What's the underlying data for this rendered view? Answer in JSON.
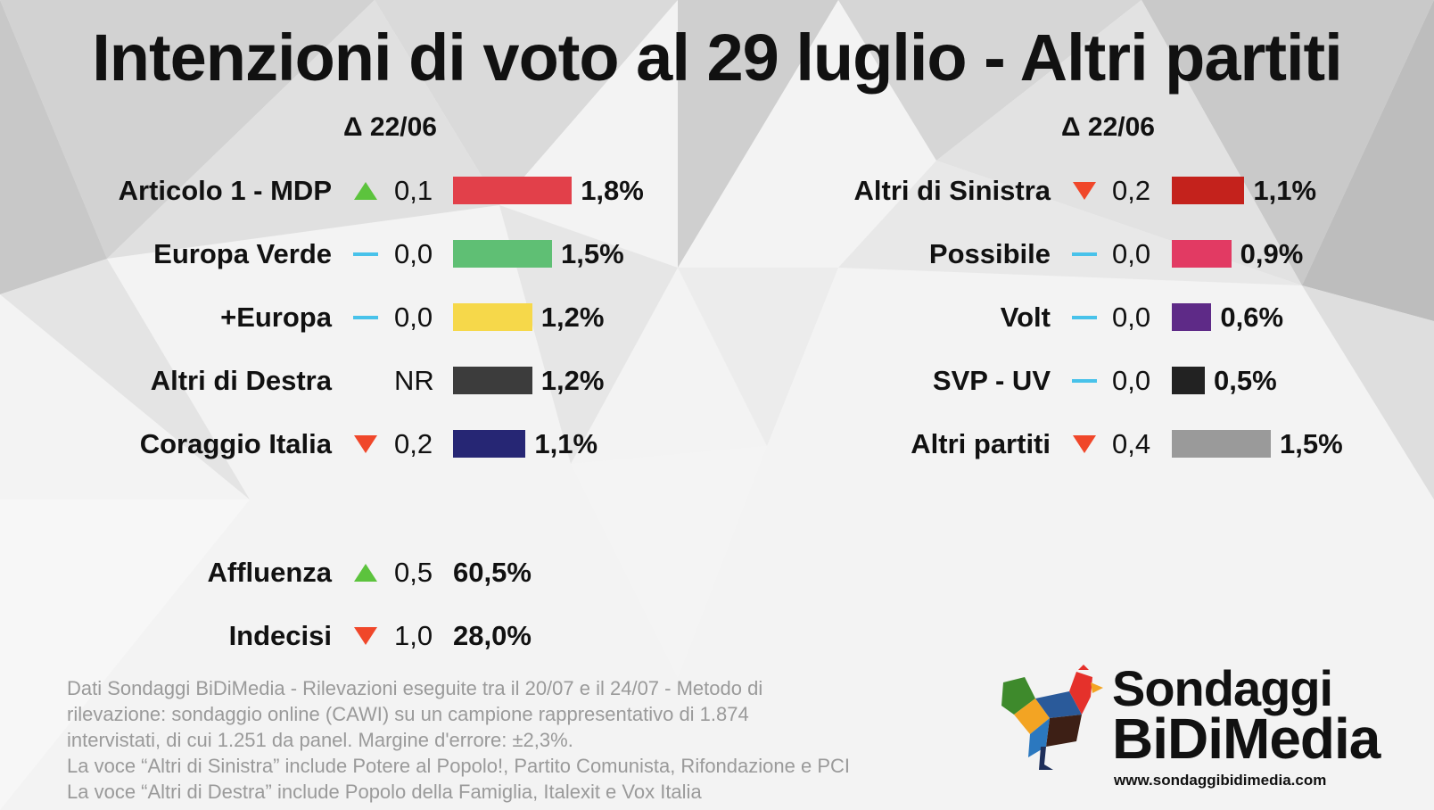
{
  "title": "Intenzioni di voto al 29 luglio - Altri partiti",
  "delta_header": "Δ 22/06",
  "colors": {
    "up": "#5cc33d",
    "down": "#f0472a",
    "neutral": "#48c2ea"
  },
  "chart_data": {
    "type": "bar",
    "unit": "%",
    "groups": [
      {
        "categories": [
          "Articolo 1 - MDP",
          "Europa Verde",
          "+Europa",
          "Altri di Destra",
          "Coraggio Italia"
        ],
        "values": [
          1.8,
          1.5,
          1.2,
          1.2,
          1.1
        ],
        "value_labels": [
          "1,8%",
          "1,5%",
          "1,2%",
          "1,2%",
          "1,1%"
        ],
        "change_labels": [
          "0,1",
          "0,0",
          "0,0",
          "NR",
          "0,2"
        ],
        "trends": [
          "up",
          "flat",
          "flat",
          "none",
          "down"
        ],
        "colors": [
          "#e2404a",
          "#5fbf74",
          "#f6d84a",
          "#3c3c3c",
          "#262674"
        ]
      },
      {
        "categories": [
          "Altri di Sinistra",
          "Possibile",
          "Volt",
          "SVP - UV",
          "Altri partiti"
        ],
        "values": [
          1.1,
          0.9,
          0.6,
          0.5,
          1.5
        ],
        "value_labels": [
          "1,1%",
          "0,9%",
          "0,6%",
          "0,5%",
          "1,5%"
        ],
        "change_labels": [
          "0,2",
          "0,0",
          "0,0",
          "0,0",
          "0,4"
        ],
        "trends": [
          "down",
          "flat",
          "flat",
          "flat",
          "down"
        ],
        "colors": [
          "#c4221c",
          "#e23a63",
          "#5e2a87",
          "#222222",
          "#9a9a9a"
        ]
      }
    ],
    "extra": [
      {
        "label": "Affluenza",
        "trend": "up",
        "change": "0,5",
        "value": "60,5%"
      },
      {
        "label": "Indecisi",
        "trend": "down",
        "change": "1,0",
        "value": "28,0%"
      }
    ]
  },
  "footnote": [
    "Dati Sondaggi BiDiMedia - Rilevazioni eseguite tra il 20/07 e il 24/07 - Metodo di",
    "rilevazione: sondaggio online (CAWI) su un campione rappresentativo di 1.874",
    "intervistati, di cui 1.251 da panel. Margine d'errore: ±2,3%.",
    "La voce “Altri di Sinistra” include Potere al Popolo!, Partito Comunista, Rifondazione e PCI",
    "La voce “Altri di Destra” include Popolo della Famiglia, Italexit e Vox Italia"
  ],
  "logo": {
    "line1": "Sondaggi",
    "line2": "BiDiMedia",
    "url": "www.sondaggibidimedia.com"
  }
}
